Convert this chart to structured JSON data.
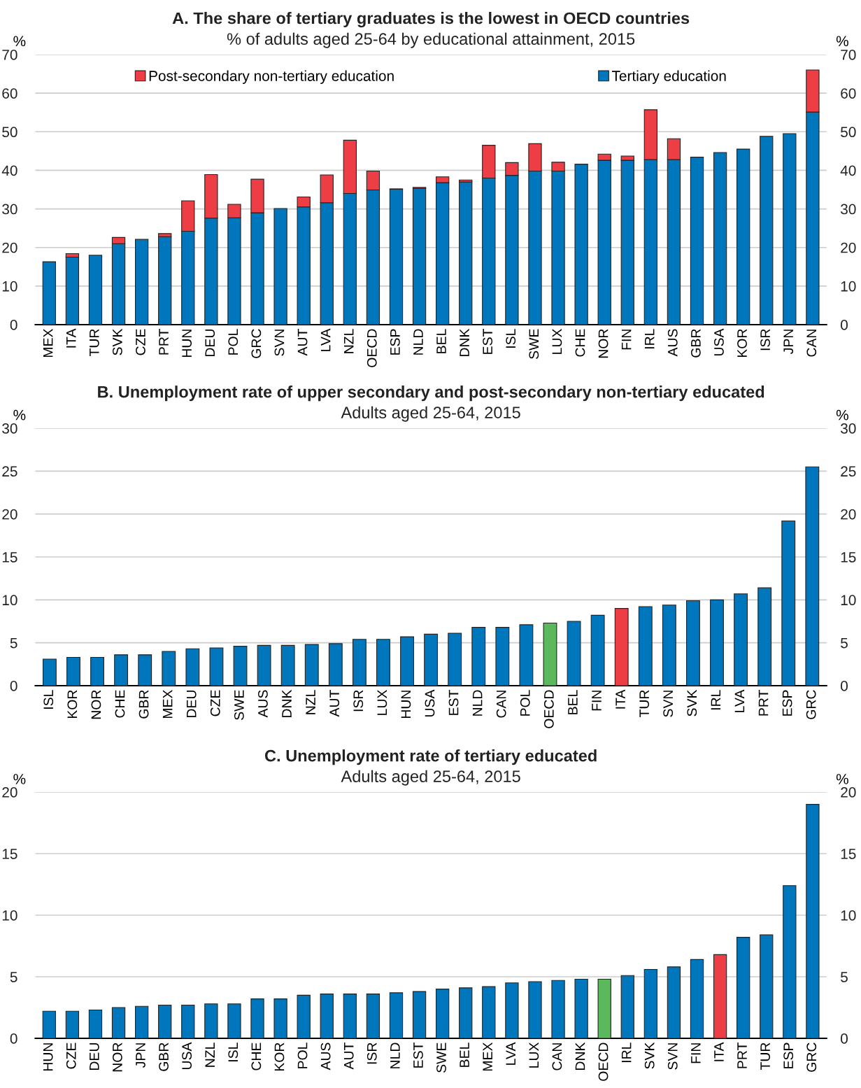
{
  "chart_data": [
    {
      "type": "bar",
      "stacked": true,
      "title": "A. The share of tertiary graduates is the lowest in OECD countries",
      "subtitle": "% of adults aged 25-64 by educational attainment, 2015",
      "ylabel": "%",
      "y2label": "%",
      "categories": [
        "MEX",
        "ITA",
        "TUR",
        "SVK",
        "CZE",
        "PRT",
        "HUN",
        "DEU",
        "POL",
        "GRC",
        "SVN",
        "AUT",
        "LVA",
        "NZL",
        "OECD",
        "ESP",
        "NLD",
        "BEL",
        "DNK",
        "EST",
        "ISL",
        "SWE",
        "LUX",
        "CHE",
        "NOR",
        "FIN",
        "IRL",
        "AUS",
        "GBR",
        "USA",
        "KOR",
        "ISR",
        "JPN",
        "CAN"
      ],
      "series": [
        {
          "name": "Tertiary education",
          "color": "#0077bd",
          "values": [
            16.3,
            17.5,
            18.0,
            21.0,
            22.1,
            22.8,
            24.2,
            27.6,
            27.7,
            29.0,
            30.1,
            30.5,
            31.6,
            34.0,
            34.9,
            35.1,
            35.3,
            36.8,
            37.0,
            38.0,
            38.7,
            39.8,
            39.8,
            41.6,
            42.6,
            42.6,
            42.8,
            42.8,
            43.4,
            44.6,
            45.5,
            48.8,
            49.5,
            55.1
          ]
        },
        {
          "name": "Post-secondary non-tertiary education",
          "color": "#ee3e45",
          "values": [
            null,
            0.9,
            null,
            1.6,
            null,
            0.8,
            7.9,
            11.3,
            3.5,
            8.7,
            null,
            2.6,
            7.2,
            13.8,
            4.9,
            0.1,
            0.3,
            1.5,
            0.5,
            8.5,
            3.3,
            7.1,
            2.3,
            null,
            1.6,
            1.1,
            12.9,
            5.4,
            null,
            null,
            null,
            null,
            null,
            10.9
          ]
        }
      ],
      "ylim": [
        0,
        70
      ],
      "yticks": [
        0,
        10,
        20,
        30,
        40,
        50,
        60,
        70
      ],
      "y2lim": [
        0,
        70
      ],
      "y2ticks": [
        0,
        10,
        20,
        30,
        40,
        50,
        60,
        70
      ],
      "grid": "y",
      "legend": "top"
    },
    {
      "type": "bar",
      "title": "B. Unemployment rate of upper secondary and post-secondary non-tertiary educated",
      "subtitle": "Adults aged 25-64, 2015",
      "ylabel": "%",
      "y2label": "%",
      "categories": [
        "ISL",
        "KOR",
        "NOR",
        "CHE",
        "GBR",
        "MEX",
        "DEU",
        "CZE",
        "SWE",
        "AUS",
        "DNK",
        "NZL",
        "AUT",
        "ISR",
        "LUX",
        "HUN",
        "USA",
        "EST",
        "NLD",
        "CAN",
        "POL",
        "OECD",
        "BEL",
        "FIN",
        "ITA",
        "TUR",
        "SVN",
        "SVK",
        "IRL",
        "LVA",
        "PRT",
        "ESP",
        "GRC"
      ],
      "values": [
        3.1,
        3.3,
        3.3,
        3.6,
        3.6,
        4.0,
        4.3,
        4.4,
        4.6,
        4.7,
        4.7,
        4.8,
        4.9,
        5.4,
        5.4,
        5.7,
        6.0,
        6.1,
        6.8,
        6.8,
        7.1,
        7.3,
        7.5,
        8.2,
        9.0,
        9.2,
        9.4,
        9.9,
        10.0,
        10.7,
        11.4,
        19.2,
        25.5
      ],
      "colors": [
        "#0077bd",
        "#0077bd",
        "#0077bd",
        "#0077bd",
        "#0077bd",
        "#0077bd",
        "#0077bd",
        "#0077bd",
        "#0077bd",
        "#0077bd",
        "#0077bd",
        "#0077bd",
        "#0077bd",
        "#0077bd",
        "#0077bd",
        "#0077bd",
        "#0077bd",
        "#0077bd",
        "#0077bd",
        "#0077bd",
        "#0077bd",
        "#5cb85c",
        "#0077bd",
        "#0077bd",
        "#ee3e45",
        "#0077bd",
        "#0077bd",
        "#0077bd",
        "#0077bd",
        "#0077bd",
        "#0077bd",
        "#0077bd",
        "#0077bd"
      ],
      "ylim": [
        0,
        30
      ],
      "yticks": [
        0,
        5,
        10,
        15,
        20,
        25,
        30
      ],
      "y2lim": [
        0,
        30
      ],
      "y2ticks": [
        0,
        5,
        10,
        15,
        20,
        25,
        30
      ],
      "grid": "y"
    },
    {
      "type": "bar",
      "title": "C. Unemployment rate of tertiary educated",
      "subtitle": "Adults aged 25-64, 2015",
      "ylabel": "%",
      "y2label": "%",
      "categories": [
        "HUN",
        "CZE",
        "DEU",
        "NOR",
        "JPN",
        "GBR",
        "USA",
        "NZL",
        "ISL",
        "CHE",
        "KOR",
        "POL",
        "AUS",
        "AUT",
        "ISR",
        "NLD",
        "EST",
        "SWE",
        "BEL",
        "MEX",
        "LVA",
        "LUX",
        "CAN",
        "DNK",
        "OECD",
        "IRL",
        "SVK",
        "SVN",
        "FIN",
        "ITA",
        "PRT",
        "TUR",
        "ESP",
        "GRC"
      ],
      "values": [
        2.2,
        2.2,
        2.3,
        2.5,
        2.6,
        2.7,
        2.7,
        2.8,
        2.8,
        3.2,
        3.2,
        3.5,
        3.6,
        3.6,
        3.6,
        3.7,
        3.8,
        4.0,
        4.1,
        4.2,
        4.5,
        4.6,
        4.7,
        4.8,
        4.8,
        5.1,
        5.6,
        5.8,
        6.4,
        6.8,
        8.2,
        8.4,
        12.4,
        19.0
      ],
      "colors": [
        "#0077bd",
        "#0077bd",
        "#0077bd",
        "#0077bd",
        "#0077bd",
        "#0077bd",
        "#0077bd",
        "#0077bd",
        "#0077bd",
        "#0077bd",
        "#0077bd",
        "#0077bd",
        "#0077bd",
        "#0077bd",
        "#0077bd",
        "#0077bd",
        "#0077bd",
        "#0077bd",
        "#0077bd",
        "#0077bd",
        "#0077bd",
        "#0077bd",
        "#0077bd",
        "#0077bd",
        "#5cb85c",
        "#0077bd",
        "#0077bd",
        "#0077bd",
        "#0077bd",
        "#ee3e45",
        "#0077bd",
        "#0077bd",
        "#0077bd",
        "#0077bd"
      ],
      "ylim": [
        0,
        20
      ],
      "yticks": [
        0,
        5,
        10,
        15,
        20
      ],
      "y2lim": [
        0,
        20
      ],
      "y2ticks": [
        0,
        5,
        10,
        15,
        20
      ],
      "grid": "y"
    }
  ]
}
